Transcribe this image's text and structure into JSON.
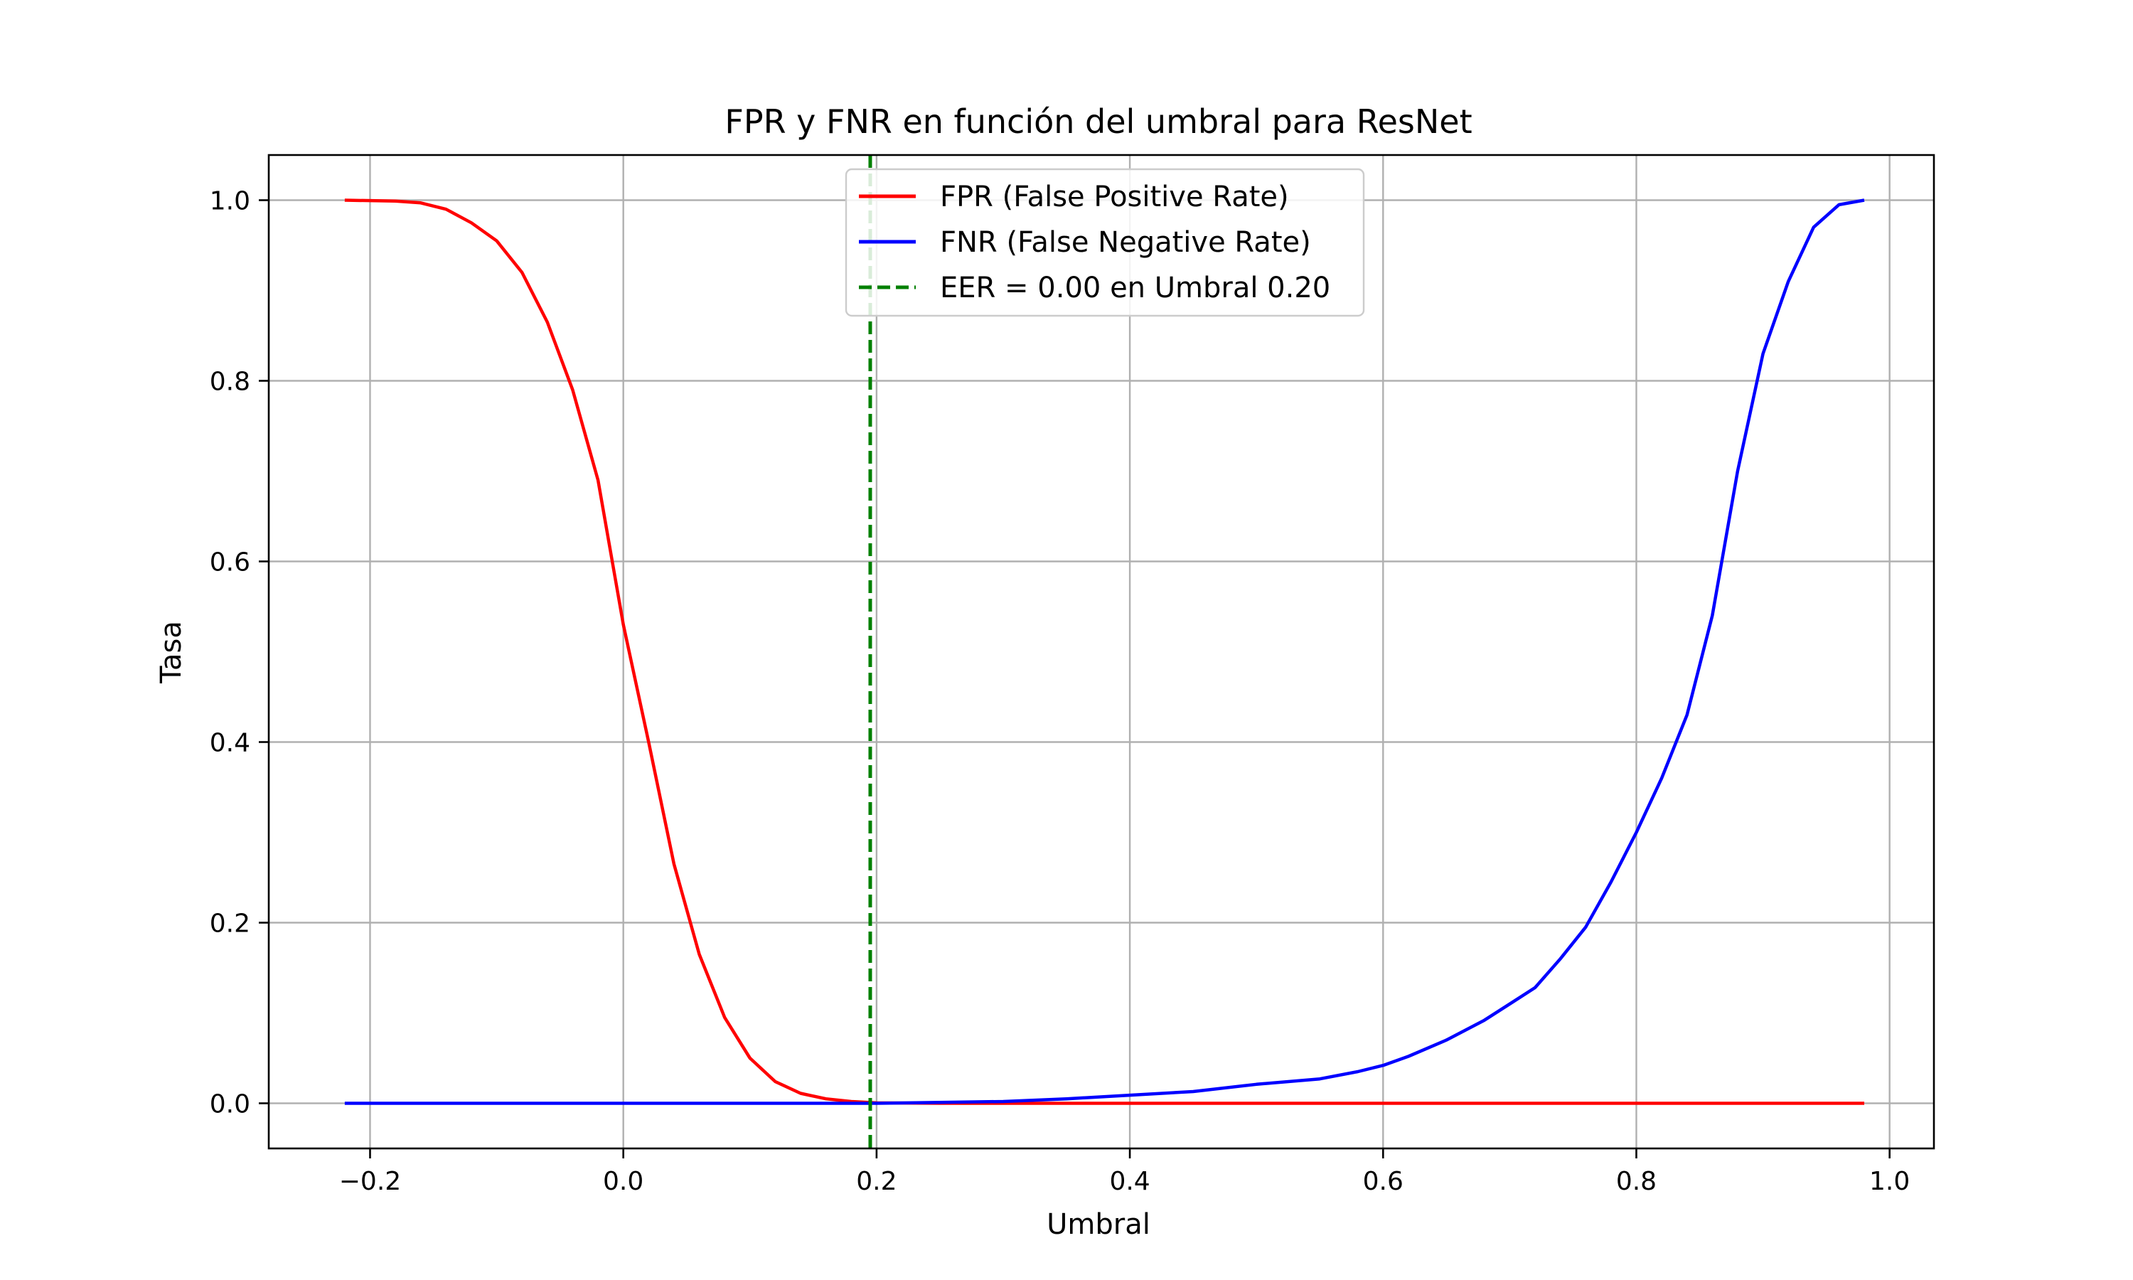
{
  "chart_data": {
    "type": "line",
    "title": "FPR y FNR en función del umbral para ResNet",
    "xlabel": "Umbral",
    "ylabel": "Tasa",
    "xlim": [
      -0.28,
      1.035
    ],
    "ylim": [
      -0.05,
      1.05
    ],
    "xticks": [
      -0.2,
      0.0,
      0.2,
      0.4,
      0.6,
      0.8,
      1.0
    ],
    "xtick_labels": [
      "−0.2",
      "0.0",
      "0.2",
      "0.4",
      "0.6",
      "0.8",
      "1.0"
    ],
    "yticks": [
      0.0,
      0.2,
      0.4,
      0.6,
      0.8,
      1.0
    ],
    "ytick_labels": [
      "0.0",
      "0.2",
      "0.4",
      "0.6",
      "0.8",
      "1.0"
    ],
    "grid": true,
    "legend_position": "top-center",
    "series": [
      {
        "name": "FPR (False Positive Rate)",
        "color": "#ff0000",
        "style": "solid",
        "points": [
          [
            -0.22,
            1.0
          ],
          [
            -0.18,
            0.999
          ],
          [
            -0.16,
            0.997
          ],
          [
            -0.14,
            0.99
          ],
          [
            -0.12,
            0.975
          ],
          [
            -0.1,
            0.955
          ],
          [
            -0.08,
            0.92
          ],
          [
            -0.06,
            0.865
          ],
          [
            -0.04,
            0.79
          ],
          [
            -0.02,
            0.69
          ],
          [
            0.0,
            0.53
          ],
          [
            0.02,
            0.4
          ],
          [
            0.04,
            0.265
          ],
          [
            0.06,
            0.165
          ],
          [
            0.08,
            0.095
          ],
          [
            0.1,
            0.05
          ],
          [
            0.12,
            0.024
          ],
          [
            0.14,
            0.011
          ],
          [
            0.16,
            0.005
          ],
          [
            0.18,
            0.002
          ],
          [
            0.2,
            0.0005
          ],
          [
            0.25,
            0.0
          ],
          [
            0.4,
            0.0
          ],
          [
            0.6,
            0.0
          ],
          [
            0.8,
            0.0
          ],
          [
            0.98,
            0.0
          ]
        ]
      },
      {
        "name": "FNR (False Negative Rate)",
        "color": "#0000ff",
        "style": "solid",
        "points": [
          [
            -0.22,
            0.0
          ],
          [
            0.0,
            0.0
          ],
          [
            0.2,
            0.0
          ],
          [
            0.25,
            0.001
          ],
          [
            0.3,
            0.002
          ],
          [
            0.35,
            0.005
          ],
          [
            0.4,
            0.009
          ],
          [
            0.45,
            0.013
          ],
          [
            0.5,
            0.021
          ],
          [
            0.55,
            0.027
          ],
          [
            0.58,
            0.035
          ],
          [
            0.6,
            0.042
          ],
          [
            0.62,
            0.052
          ],
          [
            0.65,
            0.07
          ],
          [
            0.68,
            0.092
          ],
          [
            0.7,
            0.11
          ],
          [
            0.72,
            0.128
          ],
          [
            0.74,
            0.16
          ],
          [
            0.76,
            0.195
          ],
          [
            0.78,
            0.245
          ],
          [
            0.8,
            0.3
          ],
          [
            0.82,
            0.36
          ],
          [
            0.84,
            0.43
          ],
          [
            0.86,
            0.54
          ],
          [
            0.88,
            0.7
          ],
          [
            0.9,
            0.83
          ],
          [
            0.92,
            0.91
          ],
          [
            0.94,
            0.97
          ],
          [
            0.96,
            0.995
          ],
          [
            0.98,
            1.0
          ]
        ]
      },
      {
        "name": "EER = 0.00 en Umbral 0.20",
        "color": "#008000",
        "style": "dashed",
        "vline_x": 0.195
      }
    ]
  }
}
